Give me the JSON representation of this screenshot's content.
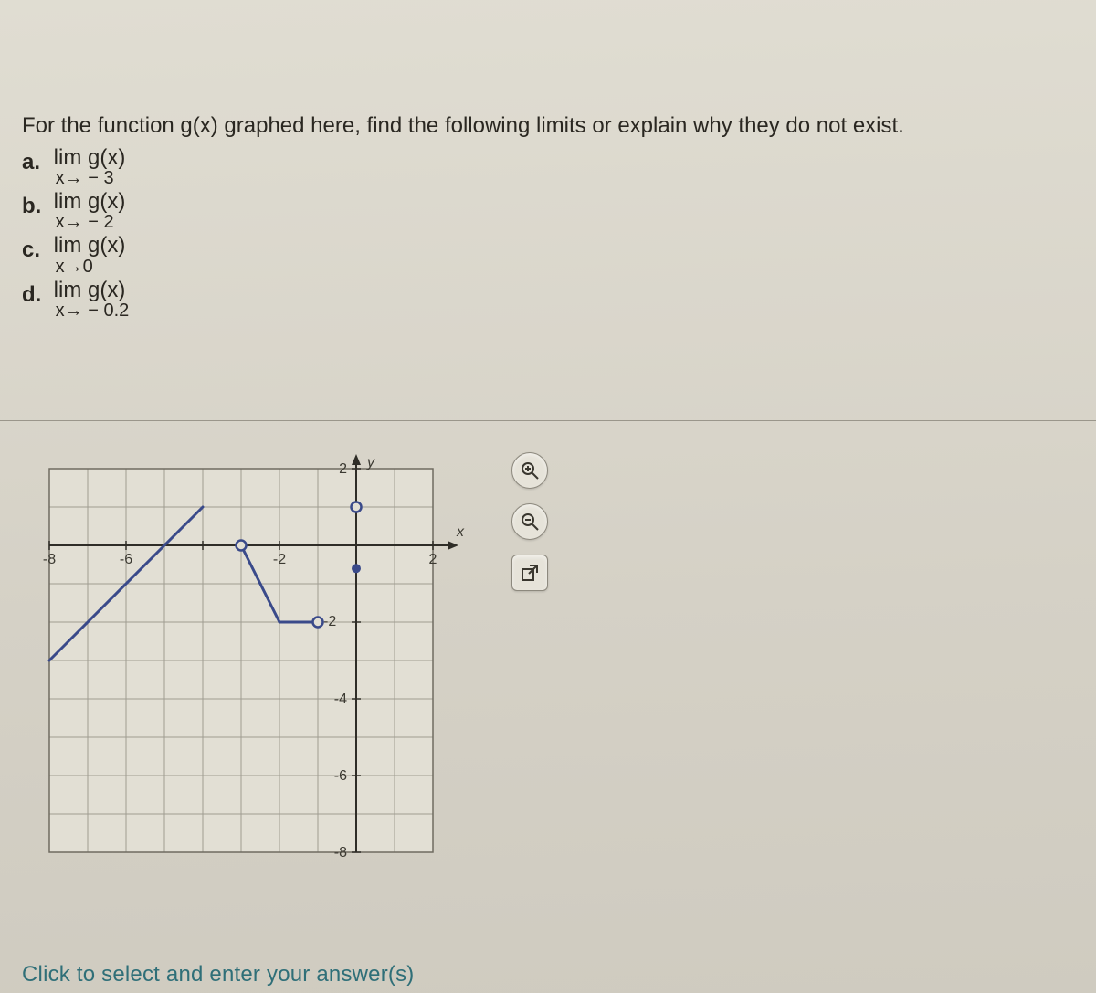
{
  "question": {
    "prompt": "For the function g(x) graphed here, find the following limits or explain why they do not exist.",
    "items": [
      {
        "label": "a.",
        "top": "lim  g(x)",
        "sub": "x→ − 3"
      },
      {
        "label": "b.",
        "top": "lim  g(x)",
        "sub": "x→ − 2"
      },
      {
        "label": "c.",
        "top": "lim g(x)",
        "sub": "x→0"
      },
      {
        "label": "d.",
        "top": "lim  g(x)",
        "sub": "x→ − 0.2"
      }
    ]
  },
  "bottom_text": "Click to select and enter your answer(s)",
  "tools": {
    "zoom_in": "zoom-in",
    "zoom_out": "zoom-out",
    "popout": "popout"
  },
  "graph": {
    "type": "line",
    "background_color": "#e2dfd4",
    "grid_color": "#a09c91",
    "frame_color": "#6f6b60",
    "axis_color": "#2f2d27",
    "line_color": "#3a4a8a",
    "line_width": 3,
    "point_fill": "#3a4a8a",
    "hole_fill": "#e2dfd4",
    "hole_stroke": "#3a4a8a",
    "xlim": [
      -8,
      2
    ],
    "ylim": [
      -8,
      2
    ],
    "xtick_step": 2,
    "ytick_step": 2,
    "xticks_labeled": [
      -8,
      -6,
      -2,
      2
    ],
    "yticks_labeled": [
      2,
      -4,
      -6,
      -8
    ],
    "x_axis_label": "x",
    "y_axis_label": "y",
    "segments": [
      {
        "from": [
          -8,
          -3
        ],
        "to": [
          -4,
          1
        ]
      },
      {
        "from": [
          -3,
          0
        ],
        "to": [
          -2,
          -2
        ]
      },
      {
        "from": [
          -2,
          -2
        ],
        "to": [
          -1,
          -2
        ]
      }
    ],
    "open_points": [
      {
        "x": -3,
        "y": 0
      },
      {
        "x": -1,
        "y": -2
      },
      {
        "x": 0,
        "y": 1
      }
    ],
    "closed_points": [
      {
        "x": 0,
        "y": -0.6
      }
    ],
    "extra_tick_label": {
      "x": -1,
      "y_label": "-2",
      "position": "at_neg1_on_axis"
    }
  },
  "colors": {
    "page_bg": "#d8d5cc",
    "text": "#2a2721",
    "link_teal": "#2f6f78"
  }
}
